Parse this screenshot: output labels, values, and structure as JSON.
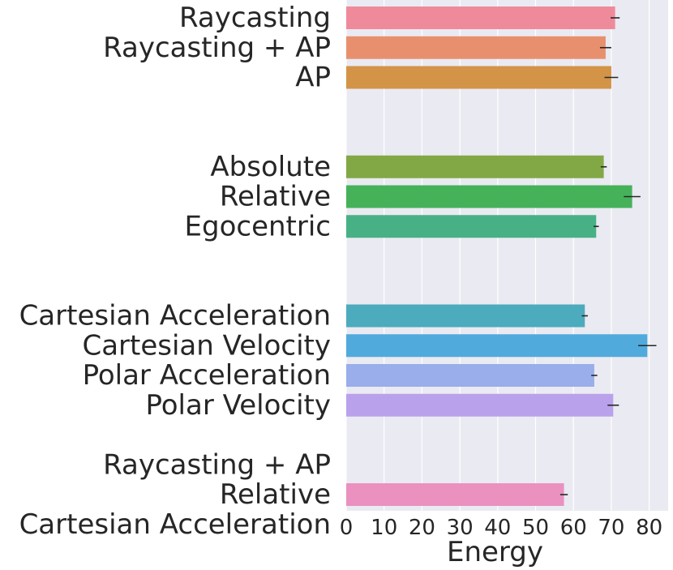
{
  "chart_data": {
    "type": "bar",
    "orientation": "horizontal",
    "xlabel": "Energy",
    "ylabel": "",
    "xlim": [
      0,
      85
    ],
    "xticks": [
      0,
      10,
      20,
      30,
      40,
      50,
      60,
      70,
      80
    ],
    "grid": true,
    "style": "seaborn darkgrid",
    "bars": [
      {
        "label": "Raycasting",
        "value": 71,
        "error": 1.2,
        "color": "#ef8a9b"
      },
      {
        "label": "Raycasting + AP",
        "value": 68.5,
        "error": 1.5,
        "color": "#e8906e"
      },
      {
        "label": "AP",
        "value": 70,
        "error": 1.8,
        "color": "#d39448"
      },
      {
        "label": "Absolute",
        "value": 68,
        "error": 0.8,
        "color": "#82a845"
      },
      {
        "label": "Relative",
        "value": 75.5,
        "error": 2.2,
        "color": "#45b25a"
      },
      {
        "label": "Egocentric",
        "value": 66,
        "error": 0.7,
        "color": "#48b085"
      },
      {
        "label": "Cartesian Acceleration",
        "value": 63,
        "error": 0.8,
        "color": "#4cabbd"
      },
      {
        "label": "Cartesian Velocity",
        "value": 79.5,
        "error": 2.4,
        "color": "#51aadc"
      },
      {
        "label": "Polar Acceleration",
        "value": 65.5,
        "error": 0.8,
        "color": "#99aeea"
      },
      {
        "label": "Polar Velocity",
        "value": 70.5,
        "error": 1.5,
        "color": "#baa1ec"
      },
      {
        "label": "Relative",
        "value": 57.5,
        "error": 1.0,
        "color": "#ea91c0"
      }
    ],
    "extra_labels": [
      "Raycasting + AP",
      "Cartesian Acceleration"
    ],
    "colors": {
      "plot_background": "#eaeaf2",
      "grid": "#ffffff",
      "error_bar": "#262626",
      "text": "#262626"
    }
  }
}
